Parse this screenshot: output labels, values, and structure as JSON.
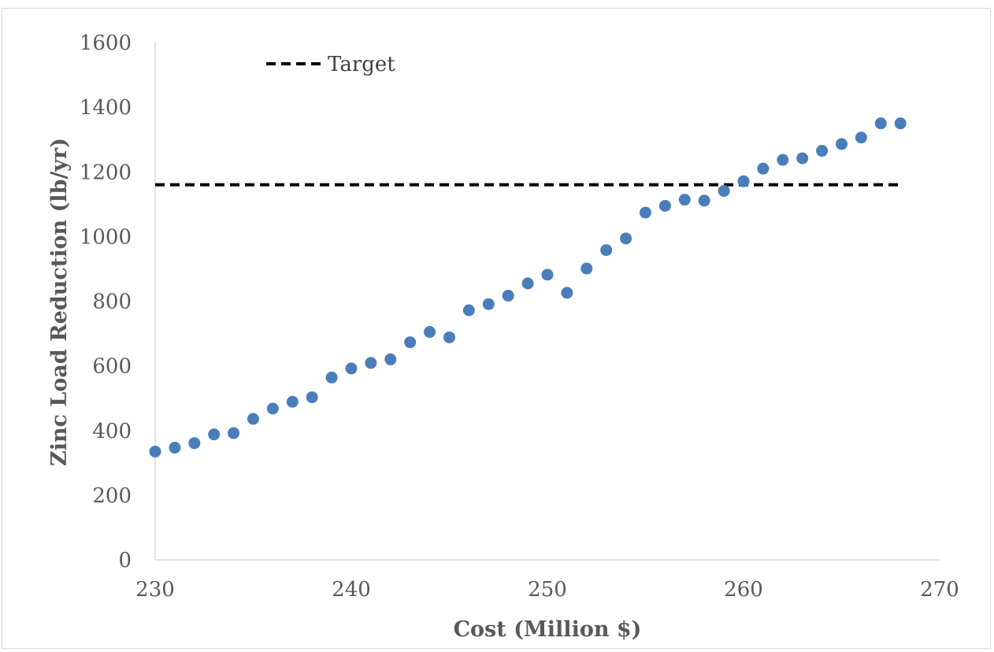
{
  "chart_data": {
    "type": "scatter",
    "title": "",
    "xlabel": "Cost (Million $)",
    "ylabel": "Zinc Load Reduction (lb/yr)",
    "xlim": [
      230,
      270
    ],
    "ylim": [
      0,
      1600
    ],
    "xticks": [
      "230",
      "240",
      "250",
      "260",
      "270"
    ],
    "yticks": [
      "0",
      "200",
      "400",
      "600",
      "800",
      "1000",
      "1200",
      "1400",
      "1600"
    ],
    "grid": false,
    "legend_position": "top-left",
    "marker_color": "#4a7ebb",
    "series": [
      {
        "x": [
          230,
          231,
          232,
          233,
          234,
          235,
          236,
          237,
          238,
          239,
          240,
          241,
          242,
          243,
          244,
          245,
          246,
          247,
          248,
          249,
          250,
          251,
          252,
          253,
          254,
          255,
          256,
          257,
          258,
          259,
          260,
          261,
          262,
          263,
          264,
          265,
          266,
          267,
          268
        ],
        "y": [
          335,
          347,
          361,
          388,
          392,
          436,
          468,
          489,
          503,
          564,
          592,
          609,
          620,
          673,
          705,
          688,
          772,
          791,
          817,
          855,
          882,
          826,
          901,
          958,
          994,
          1074,
          1095,
          1114,
          1111,
          1141,
          1171,
          1210,
          1237,
          1242,
          1265,
          1286,
          1306,
          1350,
          1350
        ]
      }
    ],
    "reference_lines": [
      {
        "name": "Target",
        "y": 1160,
        "x_start": 230,
        "x_end": 268,
        "color": "#000000",
        "style": "dashed"
      }
    ]
  }
}
